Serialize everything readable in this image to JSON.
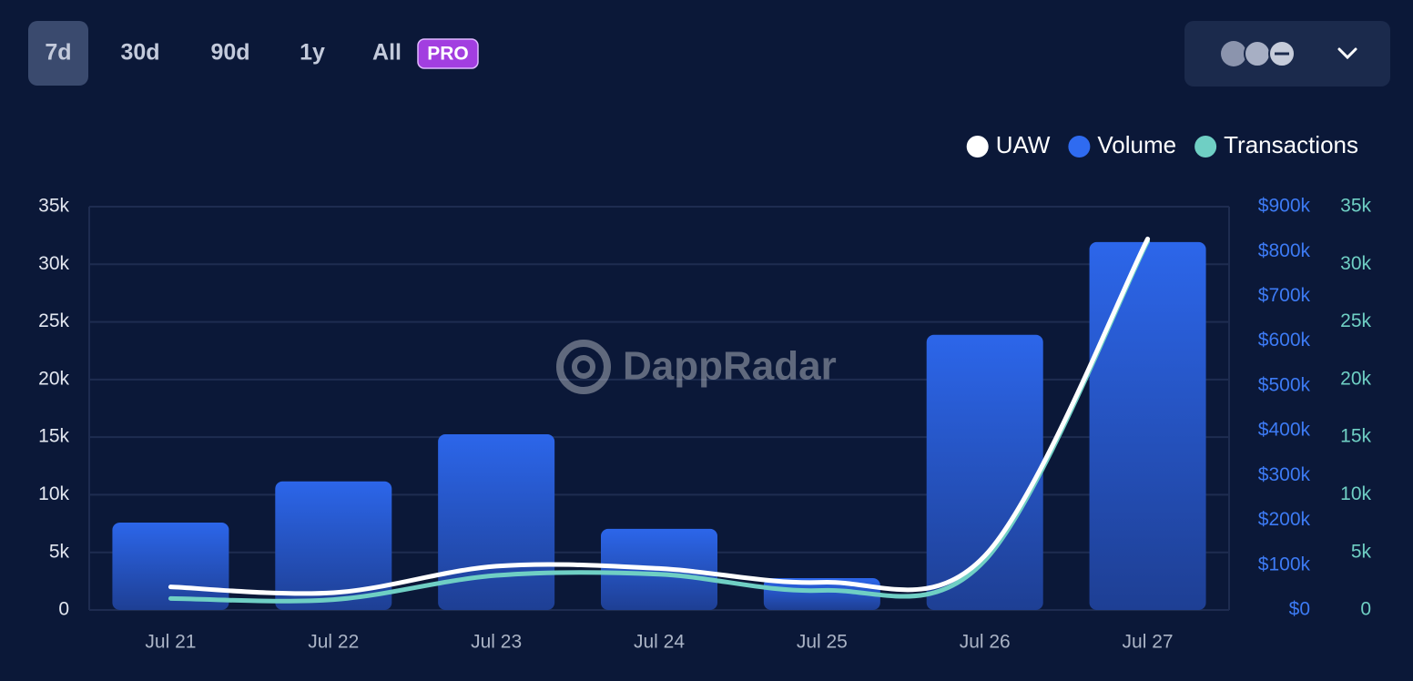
{
  "time_tabs": [
    "7d",
    "30d",
    "90d",
    "1y",
    "All"
  ],
  "pro_badge": "PRO",
  "watermark": "DappRadar",
  "chart_data": {
    "type": "bar-line",
    "categories": [
      "Jul 21",
      "Jul 22",
      "Jul 23",
      "Jul 24",
      "Jul 25",
      "Jul 26",
      "Jul 27"
    ],
    "series": [
      {
        "name": "UAW",
        "color": "#ffffff",
        "type": "line",
        "axis": "y",
        "values": [
          2000,
          1500,
          3800,
          3600,
          2400,
          4700,
          32200
        ]
      },
      {
        "name": "Volume",
        "color": "#2f6bf0",
        "type": "bar",
        "axis": "y2",
        "values": [
          195000,
          287000,
          392000,
          181000,
          71000,
          614000,
          821000
        ]
      },
      {
        "name": "Transactions",
        "color": "#6fcfc4",
        "type": "line",
        "axis": "y3",
        "values": [
          1000,
          900,
          3000,
          3100,
          1700,
          4300,
          32000
        ]
      }
    ],
    "ylim": [
      0,
      35000
    ],
    "yticks": [
      {
        "value": 0,
        "label": "0"
      },
      {
        "value": 5000,
        "label": "5k"
      },
      {
        "value": 10000,
        "label": "10k"
      },
      {
        "value": 15000,
        "label": "15k"
      },
      {
        "value": 20000,
        "label": "20k"
      },
      {
        "value": 25000,
        "label": "25k"
      },
      {
        "value": 30000,
        "label": "30k"
      },
      {
        "value": 35000,
        "label": "35k"
      }
    ],
    "y2lim": [
      0,
      900000
    ],
    "y2ticks": [
      {
        "value": 0,
        "label": "$0"
      },
      {
        "value": 100000,
        "label": "$100k"
      },
      {
        "value": 200000,
        "label": "$200k"
      },
      {
        "value": 300000,
        "label": "$300k"
      },
      {
        "value": 400000,
        "label": "$400k"
      },
      {
        "value": 500000,
        "label": "$500k"
      },
      {
        "value": 600000,
        "label": "$600k"
      },
      {
        "value": 700000,
        "label": "$700k"
      },
      {
        "value": 800000,
        "label": "$800k"
      },
      {
        "value": 900000,
        "label": "$900k"
      }
    ],
    "y3lim": [
      0,
      35000
    ],
    "y3ticks": [
      {
        "value": 0,
        "label": "0"
      },
      {
        "value": 5000,
        "label": "5k"
      },
      {
        "value": 10000,
        "label": "10k"
      },
      {
        "value": 15000,
        "label": "15k"
      },
      {
        "value": 20000,
        "label": "20k"
      },
      {
        "value": 25000,
        "label": "25k"
      },
      {
        "value": 30000,
        "label": "30k"
      },
      {
        "value": 35000,
        "label": "35k"
      }
    ],
    "grid": true,
    "legend": "top-right"
  }
}
